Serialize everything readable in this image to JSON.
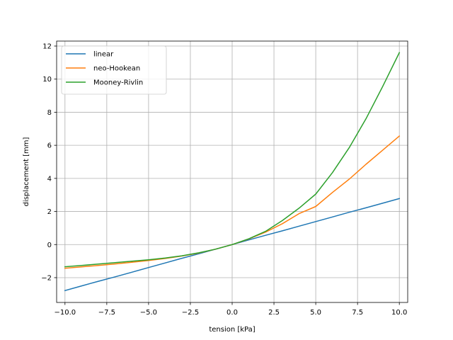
{
  "chart_data": {
    "type": "line",
    "title": "",
    "xlabel": "tension [kPa]",
    "ylabel": "displacement [mm]",
    "xlim": [
      -10.5,
      10.5
    ],
    "ylim": [
      -3.5,
      12.3
    ],
    "xticks": [
      -10.0,
      -7.5,
      -5.0,
      -2.5,
      0.0,
      2.5,
      5.0,
      7.5,
      10.0
    ],
    "xtick_labels": [
      "−10.0",
      "−7.5",
      "−5.0",
      "−2.5",
      "0.0",
      "2.5",
      "5.0",
      "7.5",
      "10.0"
    ],
    "yticks": [
      -2,
      0,
      2,
      4,
      6,
      8,
      10,
      12
    ],
    "ytick_labels": [
      "−2",
      "0",
      "2",
      "4",
      "6",
      "8",
      "10",
      "12"
    ],
    "grid": true,
    "legend": "upper-left",
    "x": [
      -10,
      -9,
      -8,
      -7,
      -6,
      -5,
      -4,
      -3,
      -2,
      -1,
      0,
      1,
      2,
      3,
      4,
      5,
      6,
      7,
      8,
      9,
      10
    ],
    "series": [
      {
        "name": "linear",
        "color": "#1f77b4",
        "values": [
          -2.78,
          -2.5,
          -2.22,
          -1.95,
          -1.67,
          -1.39,
          -1.11,
          -0.83,
          -0.56,
          -0.28,
          0.0,
          0.28,
          0.56,
          0.83,
          1.11,
          1.39,
          1.67,
          1.95,
          2.22,
          2.5,
          2.78
        ]
      },
      {
        "name": "neo-Hookean",
        "color": "#ff7f0e",
        "values": [
          -1.43,
          -1.35,
          -1.26,
          -1.17,
          -1.07,
          -0.96,
          -0.84,
          -0.69,
          -0.51,
          -0.28,
          0.0,
          0.34,
          0.75,
          1.26,
          1.87,
          2.3,
          3.15,
          3.95,
          4.85,
          5.7,
          6.56
        ]
      },
      {
        "name": "Mooney-Rivlin",
        "color": "#2ca02c",
        "values": [
          -1.34,
          -1.26,
          -1.18,
          -1.09,
          -1.01,
          -0.92,
          -0.81,
          -0.68,
          -0.5,
          -0.28,
          0.0,
          0.35,
          0.8,
          1.45,
          2.2,
          3.05,
          4.35,
          5.85,
          7.6,
          9.55,
          11.6
        ]
      }
    ]
  }
}
